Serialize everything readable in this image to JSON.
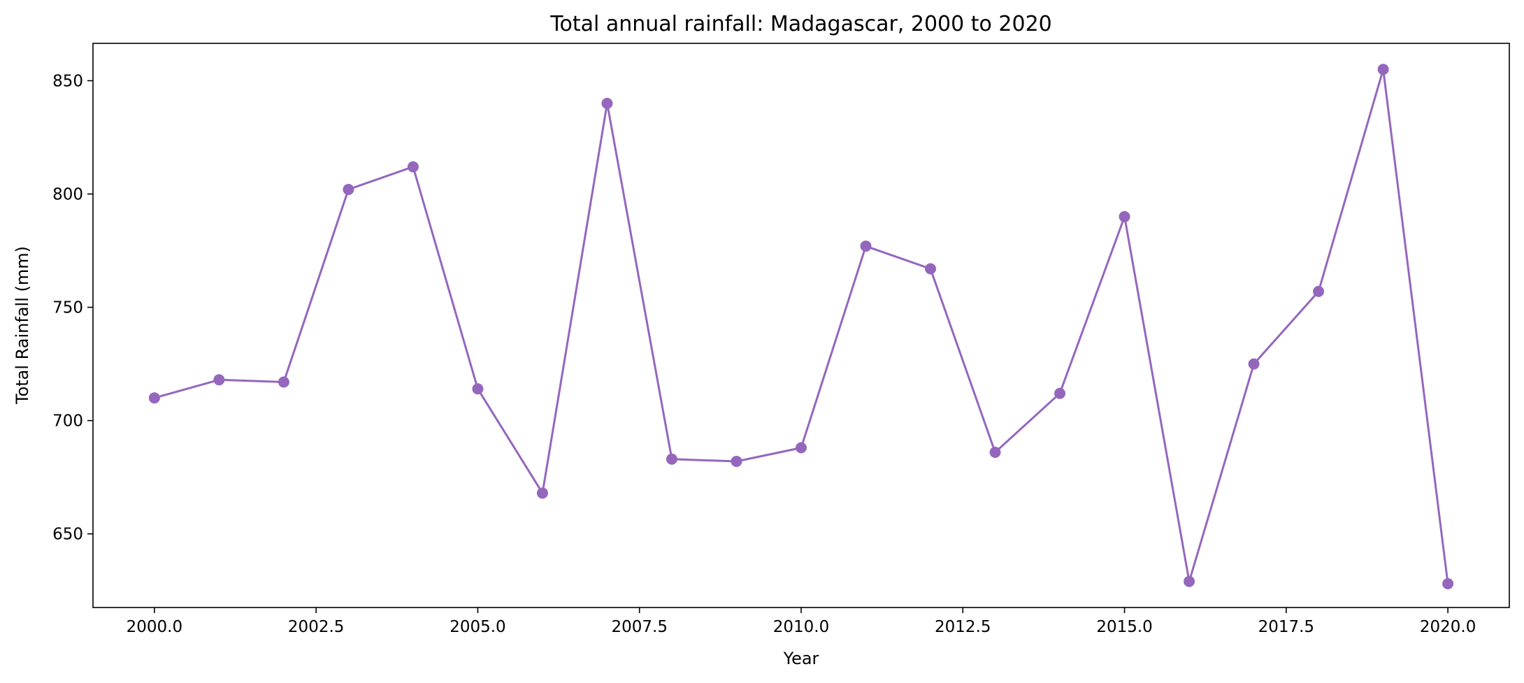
{
  "chart_data": {
    "type": "line",
    "title": "Total annual rainfall: Madagascar, 2000 to 2020",
    "xlabel": "Year",
    "ylabel": "Total Rainfall (mm)",
    "xlim": [
      1999.05,
      2020.95
    ],
    "ylim": [
      617.5,
      866.5
    ],
    "x_ticks": [
      2000.0,
      2002.5,
      2005.0,
      2007.5,
      2010.0,
      2012.5,
      2015.0,
      2017.5,
      2020.0
    ],
    "x_tick_labels": [
      "2000.0",
      "2002.5",
      "2005.0",
      "2007.5",
      "2010.0",
      "2012.5",
      "2015.0",
      "2017.5",
      "2020.0"
    ],
    "y_ticks": [
      650,
      700,
      750,
      800,
      850
    ],
    "y_tick_labels": [
      "650",
      "700",
      "750",
      "800",
      "850"
    ],
    "grid": false,
    "color": "#9467bd",
    "series": [
      {
        "x": [
          2000,
          2001,
          2002,
          2003,
          2004,
          2005,
          2006,
          2007,
          2008,
          2009,
          2010,
          2011,
          2012,
          2013,
          2014,
          2015,
          2016,
          2017,
          2018,
          2019,
          2020
        ],
        "values": [
          710,
          718,
          717,
          802,
          812,
          714,
          668,
          840,
          683,
          682,
          688,
          777,
          767,
          686,
          712,
          790,
          629,
          725,
          757,
          855,
          628
        ]
      }
    ]
  }
}
